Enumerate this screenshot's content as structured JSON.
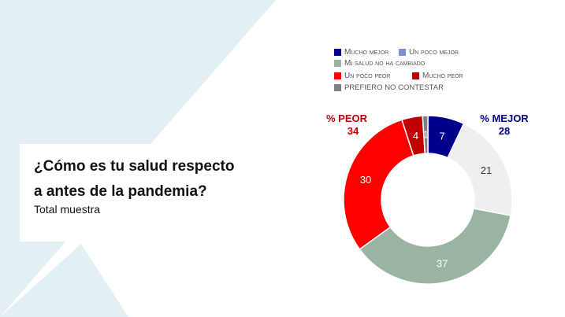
{
  "title": "¿Cómo es tu salud respecto a antes de la pandemia?",
  "subtitle": "Total muestra",
  "chart_data": {
    "type": "pie",
    "donut": true,
    "categories": [
      "Mucho mejor",
      "Un poco mejor",
      "Mi salud no ha cambiado",
      "Un poco peor",
      "Mucho peor",
      "PREFIERO NO CONTESTAR"
    ],
    "values": [
      7,
      21,
      37,
      30,
      4,
      1
    ],
    "slice_labels": [
      "7",
      "21",
      "37",
      "30",
      "4",
      "1"
    ],
    "colors": [
      "#00008b",
      "#efefef",
      "#99b4a0",
      "#ff0000",
      "#c00000",
      "#7f7f7f"
    ],
    "legend_colors": [
      "#00008b",
      "#7b8fd3",
      "#99b4a0",
      "#ff0000",
      "#c00000",
      "#7f7f7f"
    ],
    "legend_placement": "top",
    "annotations": [
      {
        "label": "% PEOR",
        "value": "34",
        "color": "#c00000"
      },
      {
        "label": "% MEJOR",
        "value": "28",
        "color": "#00008b"
      }
    ]
  }
}
